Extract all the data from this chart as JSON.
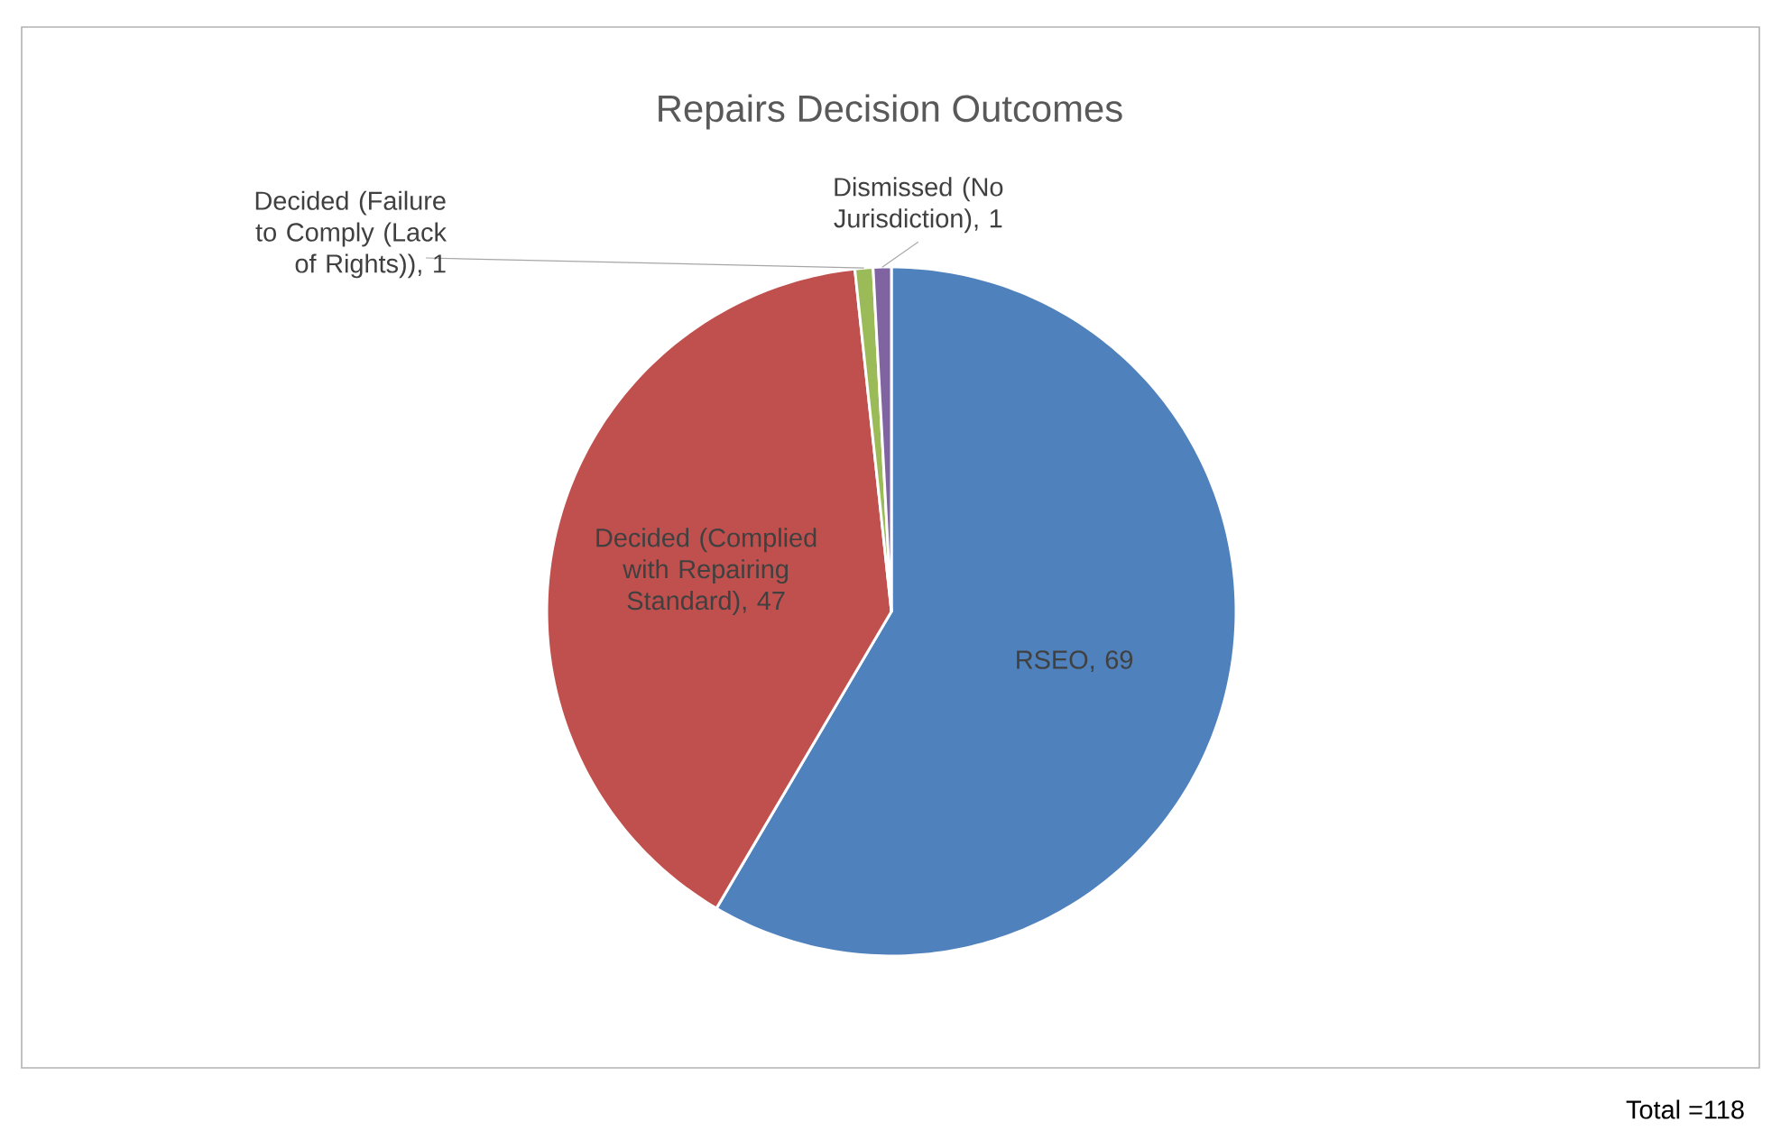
{
  "chart_data": {
    "type": "pie",
    "title": "Repairs Decision Outcomes",
    "categories": [
      "RSEO",
      "Decided (Complied with Repairing Standard)",
      "Decided (Failure to Comply (Lack of Rights))",
      "Dismissed (No Jurisdiction)"
    ],
    "values": [
      69,
      47,
      1,
      1
    ],
    "colors": [
      "#4f81bd",
      "#c0504d",
      "#9bbb59",
      "#8064a2"
    ],
    "value_labels": [
      ", 69",
      ", 47",
      ", 1",
      ", 1"
    ],
    "annotations": [
      "Total =118"
    ]
  }
}
